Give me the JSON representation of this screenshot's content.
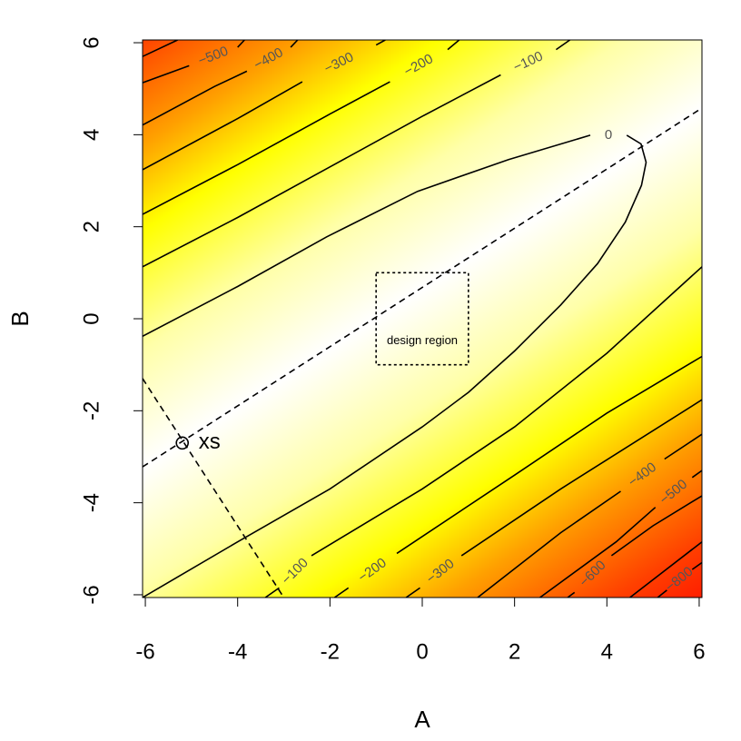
{
  "chart_data": {
    "type": "contour",
    "xlabel": "A",
    "ylabel": "B",
    "xlim": [
      -6.06,
      6.06
    ],
    "ylim": [
      -6.06,
      6.06
    ],
    "xticks": [
      -6,
      -4,
      -2,
      0,
      2,
      4,
      6
    ],
    "yticks": [
      -6,
      -4,
      -2,
      0,
      2,
      4,
      6
    ],
    "contours": [
      {
        "label": "0",
        "x": [
          -6.06,
          -4,
          -2.07,
          -0.1,
          1.87,
          3.64,
          null,
          4.43,
          4.74,
          4.85,
          4.75,
          4.4,
          3.8,
          3,
          2,
          1,
          0,
          -2,
          -4,
          -6.06
        ],
        "y": [
          -0.38,
          0.7,
          1.78,
          2.77,
          3.46,
          3.99,
          null,
          3.99,
          3.8,
          3.4,
          2.9,
          2.1,
          1.2,
          0.3,
          -0.7,
          -1.6,
          -2.35,
          -3.7,
          -4.85,
          -6.06
        ]
      },
      {
        "label": "−100",
        "x": [
          -6.06,
          -4,
          -2,
          0,
          1.7,
          null,
          2.9,
          3.2
        ],
        "y": [
          1.13,
          2.2,
          3.3,
          4.4,
          5.3,
          null,
          5.85,
          6.06
        ]
      },
      {
        "label": "−200",
        "x": [
          -6.06,
          -4,
          -2,
          -0.7,
          null,
          0.55,
          0.8
        ],
        "y": [
          2.27,
          3.35,
          4.45,
          5.15,
          null,
          5.85,
          6.06
        ]
      },
      {
        "label": "−300",
        "x": [
          -6.06,
          -4,
          -2.6,
          null,
          -1.0,
          -0.8
        ],
        "y": [
          3.24,
          4.35,
          5.15,
          null,
          5.95,
          6.06
        ]
      },
      {
        "label": "−400",
        "x": [
          -6.06,
          -4.5,
          -3.8,
          null,
          -2.85,
          -2.7
        ],
        "y": [
          4.21,
          5.05,
          5.38,
          null,
          5.9,
          6.06
        ]
      },
      {
        "label": "−500",
        "x": [
          -6.06,
          -5.05,
          null,
          -4.0,
          -3.85
        ],
        "y": [
          5.13,
          5.5,
          null,
          5.9,
          6.06
        ]
      },
      {
        "x": [
          -6.06,
          -5.3
        ],
        "y": [
          5.7,
          6.06
        ]
      },
      {
        "label": "−100",
        "x": [
          -3.4,
          -3.1,
          null,
          -2.4,
          0,
          2,
          4,
          6.06
        ],
        "y": [
          -6.06,
          -5.85,
          null,
          -5.15,
          -3.7,
          -2.35,
          -0.75,
          1.13
        ]
      },
      {
        "label": "−200",
        "x": [
          -1.9,
          -1.6,
          null,
          -0.55,
          2,
          4,
          6.06
        ],
        "y": [
          -6.06,
          -5.85,
          null,
          -5.1,
          -3.4,
          -2.05,
          -0.82
        ]
      },
      {
        "label": "−300",
        "x": [
          -0.35,
          -0.05,
          null,
          0.85,
          3,
          6.06
        ],
        "y": [
          -6.06,
          -5.85,
          null,
          -5.15,
          -3.7,
          -1.76
        ]
      },
      {
        "label": "−400",
        "x": [
          1.2,
          3,
          4.3,
          null,
          5.25,
          6.06
        ],
        "y": [
          -6.06,
          -4.65,
          -3.75,
          null,
          -3.05,
          -2.51
        ]
      },
      {
        "label": "−500",
        "x": [
          2.55,
          4.2,
          5.05,
          null,
          5.85,
          6.06
        ],
        "y": [
          -6.06,
          -4.85,
          -4.1,
          null,
          -3.45,
          -3.3
        ]
      },
      {
        "label": "−600",
        "x": [
          3.15,
          3.3,
          null,
          4.1,
          5,
          6.06
        ],
        "y": [
          -6.06,
          -5.95,
          null,
          -5.15,
          -4.5,
          -3.85
        ]
      },
      {
        "x": [
          4.5,
          6.06
        ],
        "y": [
          -6.06,
          -4.85
        ]
      },
      {
        "label": "−800",
        "x": [
          5.1,
          5.3,
          null,
          5.85,
          6.06
        ],
        "y": [
          -6.06,
          -5.9,
          null,
          -5.45,
          -5.3
        ]
      }
    ],
    "lines": [
      {
        "x": [
          -6.06,
          6.06
        ],
        "y": [
          -3.22,
          4.58
        ]
      },
      {
        "x": [
          -6.06,
          -3.0
        ],
        "y": [
          -1.3,
          -6.06
        ]
      }
    ],
    "point": {
      "label": "xs",
      "x": -5.2,
      "y": -2.7
    },
    "design_region": {
      "label": "design region",
      "x": [
        -1,
        1
      ],
      "y": [
        -1,
        1
      ]
    }
  }
}
